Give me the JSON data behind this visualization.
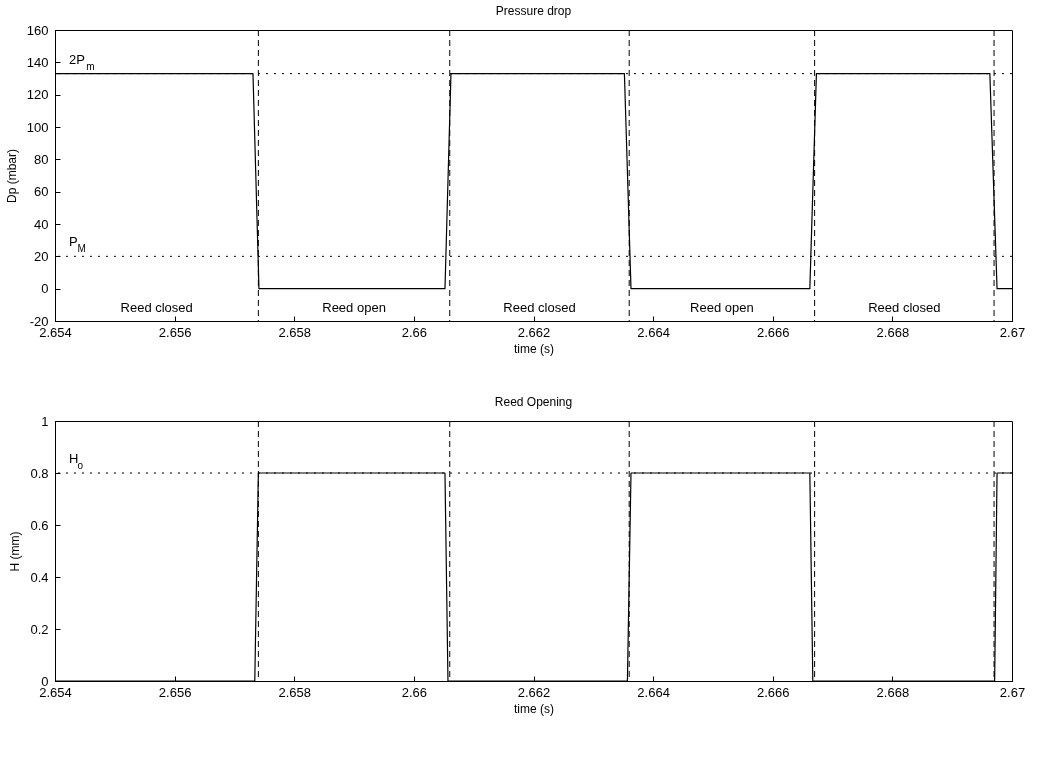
{
  "chart_data": [
    {
      "type": "line",
      "title": "Pressure drop",
      "xlabel": "time (s)",
      "ylabel": "Dp (mbar)",
      "xlim": [
        2.654,
        2.67
      ],
      "xticks": [
        2.654,
        2.656,
        2.658,
        2.66,
        2.662,
        2.664,
        2.666,
        2.668,
        2.67
      ],
      "ylim": [
        -20,
        160
      ],
      "yticks": [
        -20,
        0,
        20,
        40,
        60,
        80,
        100,
        120,
        140,
        160
      ],
      "marker": "none",
      "line_style": "solid",
      "series": [
        {
          "color": "#000000",
          "x": [
            2.654,
            2.65731,
            2.65741,
            2.66052,
            2.66062,
            2.66352,
            2.66363,
            2.66662,
            2.66673,
            2.66963,
            2.66975,
            2.67
          ],
          "values": [
            133,
            133,
            0,
            0,
            133,
            133,
            0,
            0,
            133,
            133,
            0,
            0
          ]
        }
      ],
      "ref_lines": [
        {
          "axis": "y",
          "value": 133,
          "label": "2P$_{m}$",
          "line_style": "dotted",
          "color": "#000000"
        },
        {
          "axis": "y",
          "value": 20,
          "label": "P$_{M}$",
          "line_style": "dotted",
          "color": "#000000"
        },
        {
          "axis": "x",
          "value": 2.6574,
          "line_style": "dashed",
          "color": "#000000"
        },
        {
          "axis": "x",
          "value": 2.6606,
          "line_style": "dashed",
          "color": "#000000"
        },
        {
          "axis": "x",
          "value": 2.6636,
          "line_style": "dashed",
          "color": "#000000"
        },
        {
          "axis": "x",
          "value": 2.6667,
          "line_style": "dashed",
          "color": "#000000"
        },
        {
          "axis": "x",
          "value": 2.6697,
          "line_style": "dashed",
          "color": "#000000"
        }
      ],
      "annotations": [
        "Reed closed",
        "Reed open",
        "Reed closed",
        "Reed open",
        "Reed closed"
      ]
    },
    {
      "type": "line",
      "title": "Reed Opening",
      "xlabel": "time (s)",
      "ylabel": "H  (mm)",
      "xlim": [
        2.654,
        2.67
      ],
      "xticks": [
        2.654,
        2.656,
        2.658,
        2.66,
        2.662,
        2.664,
        2.666,
        2.668,
        2.67
      ],
      "ylim": [
        0,
        1
      ],
      "yticks": [
        0,
        0.2,
        0.4,
        0.6,
        0.8,
        1
      ],
      "marker": "none",
      "line_style": "solid",
      "series": [
        {
          "color": "#000000",
          "x": [
            2.654,
            2.65734,
            2.6574,
            2.66052,
            2.66057,
            2.66357,
            2.66363,
            2.66662,
            2.66667,
            2.66971,
            2.66975,
            2.67
          ],
          "values": [
            0,
            0,
            0.8,
            0.8,
            0,
            0,
            0.8,
            0.8,
            0,
            0,
            0.8,
            0.8
          ]
        }
      ],
      "ref_lines": [
        {
          "axis": "y",
          "value": 0.8,
          "label": "H$_{o}$",
          "line_style": "dotted",
          "color": "#000000"
        },
        {
          "axis": "x",
          "value": 2.6574,
          "line_style": "dashed",
          "color": "#000000"
        },
        {
          "axis": "x",
          "value": 2.6606,
          "line_style": "dashed",
          "color": "#000000"
        },
        {
          "axis": "x",
          "value": 2.6636,
          "line_style": "dashed",
          "color": "#000000"
        },
        {
          "axis": "x",
          "value": 2.6667,
          "line_style": "dashed",
          "color": "#000000"
        },
        {
          "axis": "x",
          "value": 2.6697,
          "line_style": "dashed",
          "color": "#000000"
        }
      ]
    }
  ]
}
